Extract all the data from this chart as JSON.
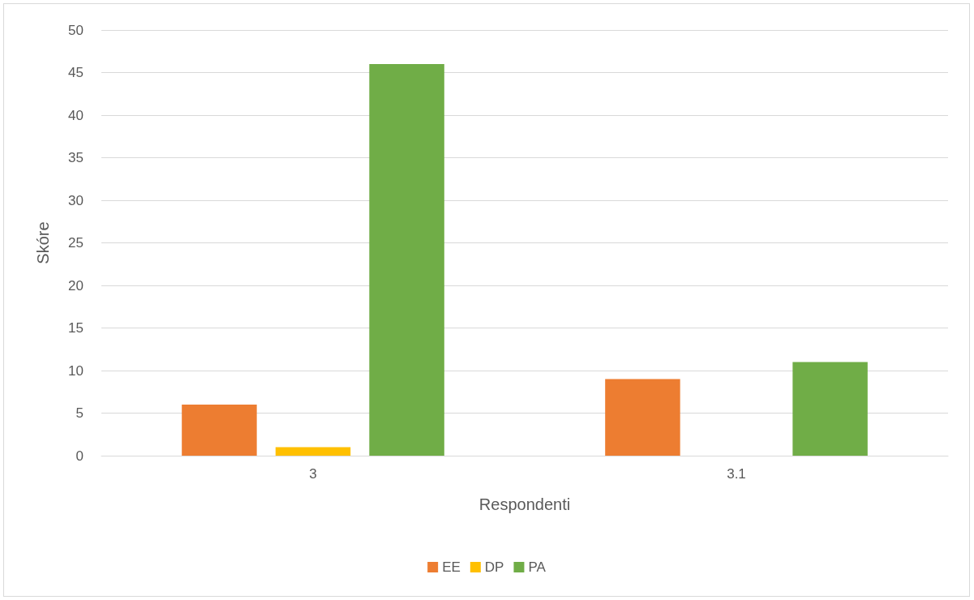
{
  "chart_data": {
    "type": "bar",
    "xlabel": "Respondenti",
    "ylabel": "Skóre",
    "categories": [
      "3",
      "3.1"
    ],
    "series": [
      {
        "name": "EE",
        "color": "#ed7d31",
        "values": [
          6,
          9
        ]
      },
      {
        "name": "DP",
        "color": "#ffc000",
        "values": [
          1,
          0
        ]
      },
      {
        "name": "PA",
        "color": "#70ad47",
        "values": [
          46,
          11
        ]
      }
    ],
    "ylim": [
      0,
      50
    ],
    "yticks": [
      0,
      5,
      10,
      15,
      20,
      25,
      30,
      35,
      40,
      45,
      50
    ],
    "grid": "y",
    "legend": "bottom"
  }
}
